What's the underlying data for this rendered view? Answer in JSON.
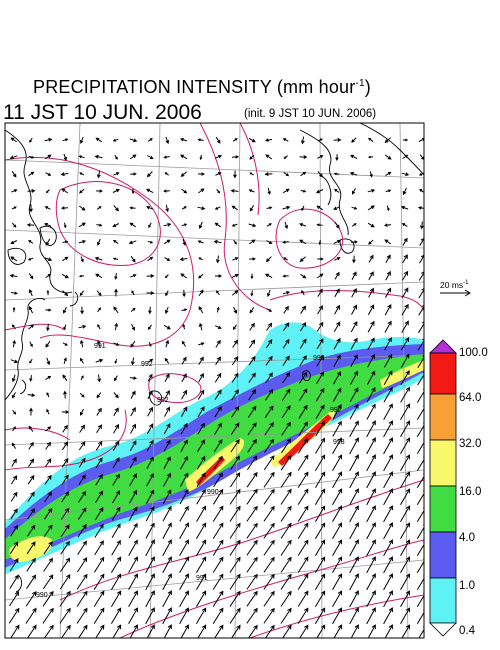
{
  "title": {
    "main": "PRECIPITATION INTENSITY (mm hour",
    "exponent": "-1",
    "close": ")"
  },
  "valid_time": "11 JST 10 JUN. 2006",
  "init_time": "(init. 9 JST 10 JUN. 2006)",
  "wind_reference": {
    "label": "20 ms",
    "exponent": "-1"
  },
  "legend": {
    "labels": [
      "100.0",
      "64.0",
      "32.0",
      "16.0",
      "4.0",
      "1.0",
      "0.4"
    ],
    "colors": [
      "#b22fd8",
      "#f21a12",
      "#f7a035",
      "#f8f86a",
      "#41dc41",
      "#5b5bf0",
      "#5ef2f6",
      "#ffffff"
    ]
  },
  "contour_labels": [
    "991",
    "992",
    "993",
    "992",
    "993",
    "992",
    "990",
    "991",
    "990"
  ],
  "colors": {
    "coastline": "#000000",
    "grid": "#999999",
    "isobar": "#d01a6a"
  }
}
